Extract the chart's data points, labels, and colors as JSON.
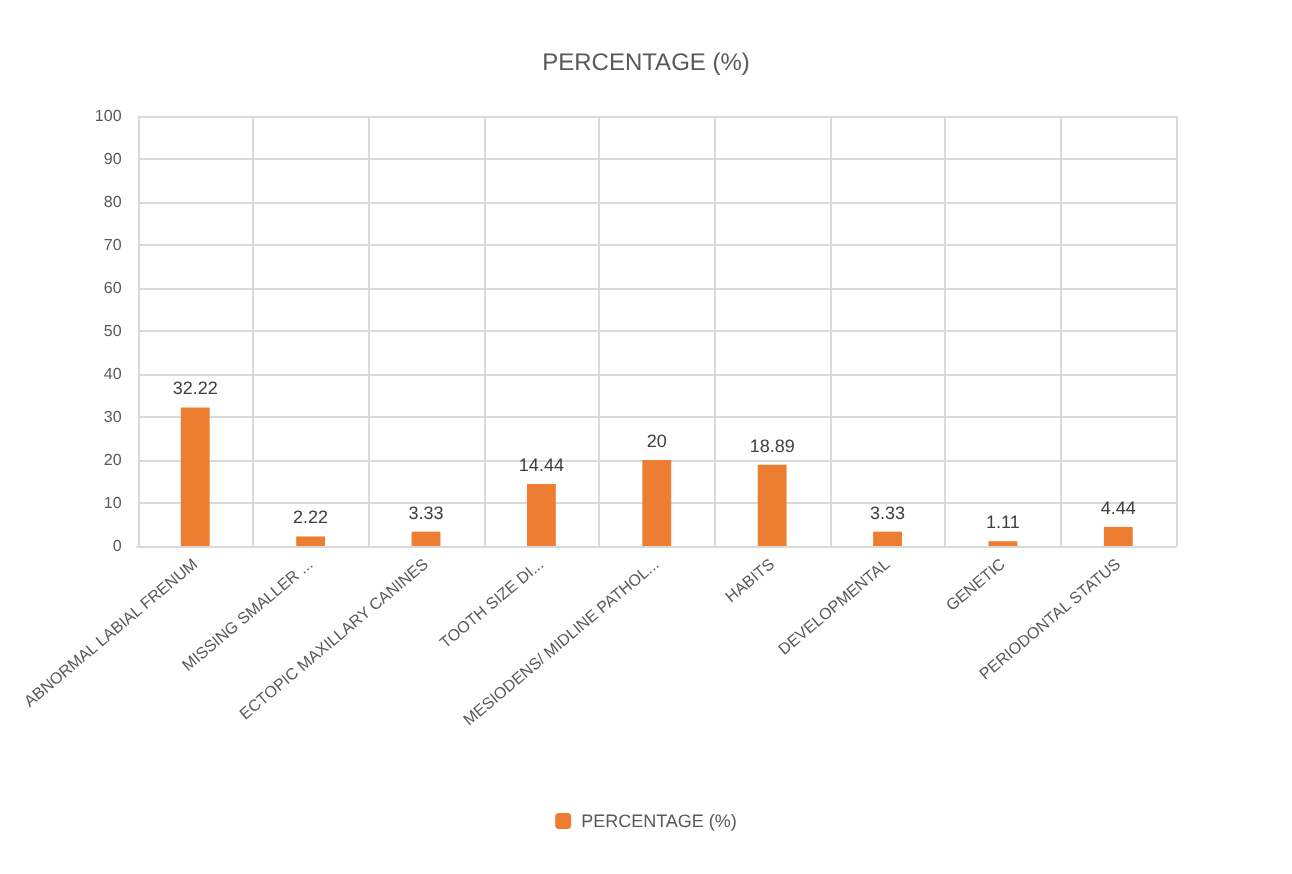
{
  "chart_data": {
    "type": "bar",
    "title": "PERCENTAGE (%)",
    "categories": [
      "ABNORMAL LABIAL FRENUM",
      "MISSING SMALLER ...",
      "ECTOPIC MAXILLARY CANINES",
      "TOOTH SIZE DI...",
      "MESIODENS/ MIDLINE PATHOL...",
      "HABITS",
      "DEVELOPMENTAL",
      "GENETIC",
      "PERIODONTAL STATUS"
    ],
    "series": [
      {
        "name": "PERCENTAGE (%)",
        "color": "#ed7d31",
        "values": [
          32.22,
          2.22,
          3.33,
          14.44,
          20,
          18.89,
          3.33,
          1.11,
          4.44
        ]
      }
    ],
    "ylim": [
      0,
      100
    ],
    "yticks": [
      0,
      10,
      20,
      30,
      40,
      50,
      60,
      70,
      80,
      90,
      100
    ],
    "grid": true,
    "legend": "bottom",
    "data_labels": true
  }
}
